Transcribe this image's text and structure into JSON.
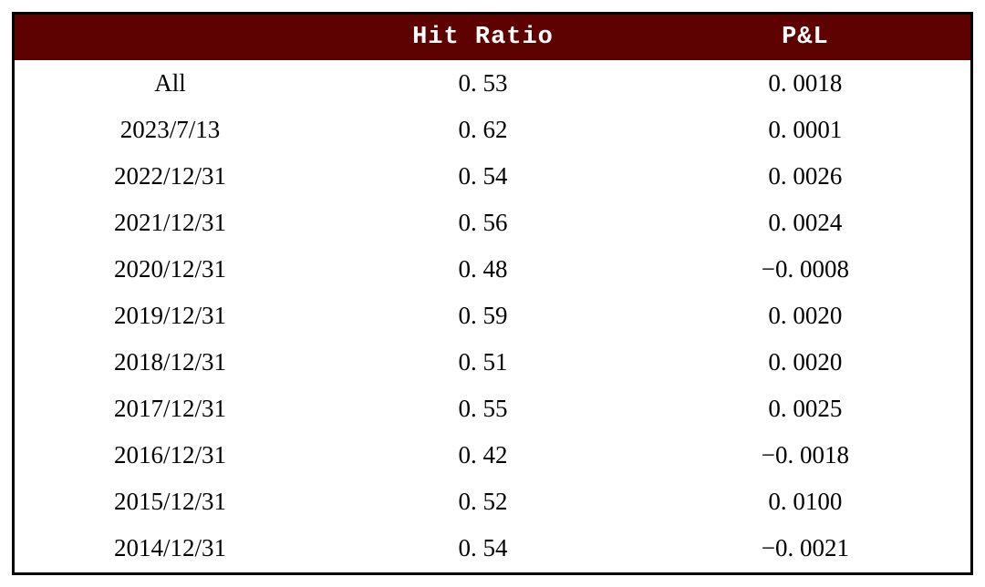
{
  "table": {
    "columns": [
      "",
      "Hit Ratio",
      "P&L"
    ],
    "rows": [
      {
        "label": "All",
        "hit_ratio": "0. 53",
        "pnl": "0. 0018"
      },
      {
        "label": "2023/7/13",
        "hit_ratio": "0. 62",
        "pnl": "0. 0001"
      },
      {
        "label": "2022/12/31",
        "hit_ratio": "0. 54",
        "pnl": "0. 0026"
      },
      {
        "label": "2021/12/31",
        "hit_ratio": "0. 56",
        "pnl": "0. 0024"
      },
      {
        "label": "2020/12/31",
        "hit_ratio": "0. 48",
        "pnl": "−0. 0008"
      },
      {
        "label": "2019/12/31",
        "hit_ratio": "0. 59",
        "pnl": "0. 0020"
      },
      {
        "label": "2018/12/31",
        "hit_ratio": "0. 51",
        "pnl": "0. 0020"
      },
      {
        "label": "2017/12/31",
        "hit_ratio": "0. 55",
        "pnl": "0. 0025"
      },
      {
        "label": "2016/12/31",
        "hit_ratio": "0. 42",
        "pnl": "−0. 0018"
      },
      {
        "label": "2015/12/31",
        "hit_ratio": "0. 52",
        "pnl": "0. 0100"
      },
      {
        "label": "2014/12/31",
        "hit_ratio": "0. 54",
        "pnl": "−0. 0021"
      }
    ]
  },
  "chart_data": {
    "type": "table",
    "columns": [
      "",
      "Hit Ratio",
      "P&L"
    ],
    "categories": [
      "All",
      "2023/7/13",
      "2022/12/31",
      "2021/12/31",
      "2020/12/31",
      "2019/12/31",
      "2018/12/31",
      "2017/12/31",
      "2016/12/31",
      "2015/12/31",
      "2014/12/31"
    ],
    "series": [
      {
        "name": "Hit Ratio",
        "values": [
          0.53,
          0.62,
          0.54,
          0.56,
          0.48,
          0.59,
          0.51,
          0.55,
          0.42,
          0.52,
          0.54
        ]
      },
      {
        "name": "P&L",
        "values": [
          0.0018,
          0.0001,
          0.0026,
          0.0024,
          -0.0008,
          0.002,
          0.002,
          0.0025,
          -0.0018,
          0.01,
          -0.0021
        ]
      }
    ],
    "title": "",
    "legend": false,
    "grid": false
  },
  "colors": {
    "header_bg": "#5E0101",
    "header_text": "#FFFFFF",
    "body_text": "#000000",
    "border": "#000000",
    "page_bg": "#FFFFFF"
  }
}
